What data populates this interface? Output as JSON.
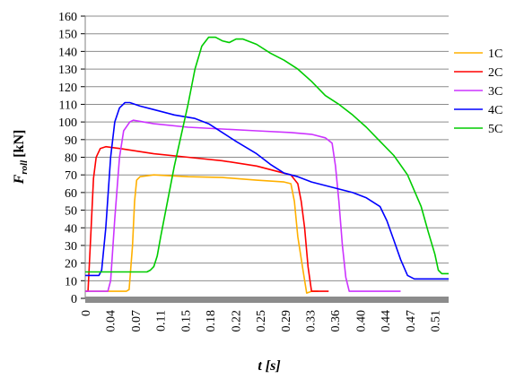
{
  "chart_data": {
    "type": "line",
    "xlabel": "t [s]",
    "ylabel": "F_roll [kN]",
    "ylabel_main": "F",
    "ylabel_sub": "roll",
    "ylabel_unit": "[kN]",
    "xlabel_var": "t",
    "xlabel_unit": "[s]",
    "xlim": [
      0,
      0.53
    ],
    "ylim": [
      0,
      160
    ],
    "grid": "horizontal",
    "legend_position": "right",
    "x_ticks": [
      "0",
      "0.04",
      "0.07",
      "0.11",
      "0.15",
      "0.18",
      "0.22",
      "0.25",
      "0.29",
      "0.33",
      "0.36",
      "0.40",
      "0.44",
      "0.47",
      "0.51"
    ],
    "x_tick_values": [
      0,
      0.036,
      0.073,
      0.109,
      0.146,
      0.182,
      0.219,
      0.255,
      0.292,
      0.328,
      0.364,
      0.401,
      0.437,
      0.474,
      0.51
    ],
    "y_ticks": [
      0,
      10,
      20,
      30,
      40,
      50,
      60,
      70,
      80,
      90,
      100,
      110,
      120,
      130,
      140,
      150,
      160
    ],
    "series": [
      {
        "name": "1C",
        "color": "#FFB000",
        "points": [
          [
            0.0,
            4
          ],
          [
            0.06,
            4
          ],
          [
            0.064,
            5
          ],
          [
            0.069,
            30
          ],
          [
            0.072,
            55
          ],
          [
            0.075,
            67
          ],
          [
            0.08,
            69
          ],
          [
            0.1,
            70
          ],
          [
            0.15,
            69
          ],
          [
            0.2,
            68.5
          ],
          [
            0.25,
            67
          ],
          [
            0.29,
            66
          ],
          [
            0.3,
            65
          ],
          [
            0.305,
            55
          ],
          [
            0.31,
            35
          ],
          [
            0.318,
            15
          ],
          [
            0.323,
            3
          ],
          [
            0.33,
            4
          ],
          [
            0.34,
            4
          ]
        ]
      },
      {
        "name": "2C",
        "color": "#FF0000",
        "points": [
          [
            0.0,
            4
          ],
          [
            0.004,
            4
          ],
          [
            0.008,
            35
          ],
          [
            0.012,
            68
          ],
          [
            0.016,
            80
          ],
          [
            0.022,
            85
          ],
          [
            0.03,
            86
          ],
          [
            0.05,
            85
          ],
          [
            0.1,
            82
          ],
          [
            0.15,
            80
          ],
          [
            0.2,
            78
          ],
          [
            0.25,
            75
          ],
          [
            0.28,
            72
          ],
          [
            0.3,
            70
          ],
          [
            0.31,
            65
          ],
          [
            0.315,
            55
          ],
          [
            0.32,
            40
          ],
          [
            0.325,
            18
          ],
          [
            0.33,
            4
          ],
          [
            0.355,
            4
          ]
        ]
      },
      {
        "name": "3C",
        "color": "#CC33FF",
        "points": [
          [
            0.0,
            4
          ],
          [
            0.033,
            4
          ],
          [
            0.037,
            10
          ],
          [
            0.043,
            45
          ],
          [
            0.05,
            80
          ],
          [
            0.056,
            95
          ],
          [
            0.065,
            100
          ],
          [
            0.07,
            101
          ],
          [
            0.1,
            99
          ],
          [
            0.15,
            97
          ],
          [
            0.2,
            96
          ],
          [
            0.25,
            95
          ],
          [
            0.3,
            94
          ],
          [
            0.33,
            93
          ],
          [
            0.35,
            91
          ],
          [
            0.36,
            88
          ],
          [
            0.365,
            75
          ],
          [
            0.37,
            55
          ],
          [
            0.375,
            30
          ],
          [
            0.38,
            12
          ],
          [
            0.385,
            4
          ],
          [
            0.4,
            4
          ],
          [
            0.46,
            4
          ]
        ]
      },
      {
        "name": "4C",
        "color": "#0000FF",
        "points": [
          [
            0.0,
            13
          ],
          [
            0.02,
            13
          ],
          [
            0.024,
            16
          ],
          [
            0.03,
            40
          ],
          [
            0.037,
            80
          ],
          [
            0.043,
            100
          ],
          [
            0.05,
            108
          ],
          [
            0.058,
            111
          ],
          [
            0.065,
            111
          ],
          [
            0.08,
            109
          ],
          [
            0.1,
            107
          ],
          [
            0.13,
            104
          ],
          [
            0.16,
            102
          ],
          [
            0.18,
            99
          ],
          [
            0.2,
            94
          ],
          [
            0.22,
            89
          ],
          [
            0.25,
            82
          ],
          [
            0.27,
            76
          ],
          [
            0.29,
            71
          ],
          [
            0.31,
            69
          ],
          [
            0.33,
            66
          ],
          [
            0.36,
            63
          ],
          [
            0.39,
            60
          ],
          [
            0.41,
            57
          ],
          [
            0.43,
            52
          ],
          [
            0.44,
            44
          ],
          [
            0.45,
            33
          ],
          [
            0.46,
            22
          ],
          [
            0.47,
            13
          ],
          [
            0.48,
            11
          ],
          [
            0.53,
            11
          ]
        ]
      },
      {
        "name": "5C",
        "color": "#00CC00",
        "points": [
          [
            0.0,
            15
          ],
          [
            0.08,
            15
          ],
          [
            0.09,
            15
          ],
          [
            0.095,
            16
          ],
          [
            0.1,
            18
          ],
          [
            0.105,
            24
          ],
          [
            0.11,
            35
          ],
          [
            0.13,
            75
          ],
          [
            0.15,
            110
          ],
          [
            0.16,
            130
          ],
          [
            0.17,
            143
          ],
          [
            0.18,
            148
          ],
          [
            0.19,
            148
          ],
          [
            0.2,
            146
          ],
          [
            0.21,
            145
          ],
          [
            0.22,
            147
          ],
          [
            0.23,
            147
          ],
          [
            0.25,
            144
          ],
          [
            0.27,
            139
          ],
          [
            0.29,
            135
          ],
          [
            0.31,
            130
          ],
          [
            0.33,
            123
          ],
          [
            0.35,
            115
          ],
          [
            0.37,
            110
          ],
          [
            0.39,
            104
          ],
          [
            0.41,
            97
          ],
          [
            0.43,
            89
          ],
          [
            0.45,
            81
          ],
          [
            0.47,
            70
          ],
          [
            0.49,
            52
          ],
          [
            0.5,
            38
          ],
          [
            0.51,
            25
          ],
          [
            0.515,
            16
          ],
          [
            0.52,
            14
          ],
          [
            0.53,
            14
          ]
        ]
      }
    ]
  }
}
